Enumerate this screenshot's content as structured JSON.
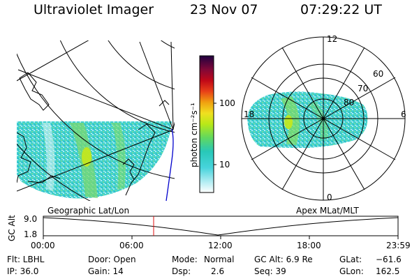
{
  "header": {
    "instrument": "Ultraviolet Imager",
    "date": "23 Nov 07",
    "time": "07:29:22 UT"
  },
  "colorbar": {
    "unit_label": "photon cm⁻²s⁻¹",
    "ticks": [
      "100",
      "10"
    ],
    "scale": "log",
    "colors": [
      "#ffffff",
      "#a8e8f0",
      "#40d0d8",
      "#30c8a0",
      "#7cdc30",
      "#c8e818",
      "#f0d018",
      "#f09010",
      "#e82020",
      "#b80818",
      "#780838",
      "#300048"
    ]
  },
  "panels": {
    "left_caption": "Geographic Lat/Lon",
    "right_caption": "Apex MLat/MLT"
  },
  "polar": {
    "lat_labels": [
      "80",
      "70",
      "60"
    ],
    "mlt_labels": {
      "top": "12",
      "left": "18",
      "right": "6",
      "bottom": "0"
    }
  },
  "altitude_strip": {
    "axis_label": "GC Alt",
    "y_ticks": [
      "9.0",
      "1.8"
    ],
    "x_ticks": [
      "00:00",
      "06:00",
      "12:00",
      "18:00",
      "23:59"
    ],
    "current_time_hours": 7.49
  },
  "info": {
    "filter": "Flt: LBHL",
    "door": "Door: Open",
    "mode_label": "Mode:",
    "mode_value": "Normal",
    "gc_alt": "GC Alt: 6.9 Re",
    "glat_label": "GLat:",
    "glat_value": "−61.6",
    "ip": "IP: 36.0",
    "gain": "Gain: 14",
    "dsp_label": "Dsp:",
    "dsp_value": "2.6",
    "seq": "Seq: 39",
    "glon_label": "GLon:",
    "glon_value": "162.5"
  }
}
